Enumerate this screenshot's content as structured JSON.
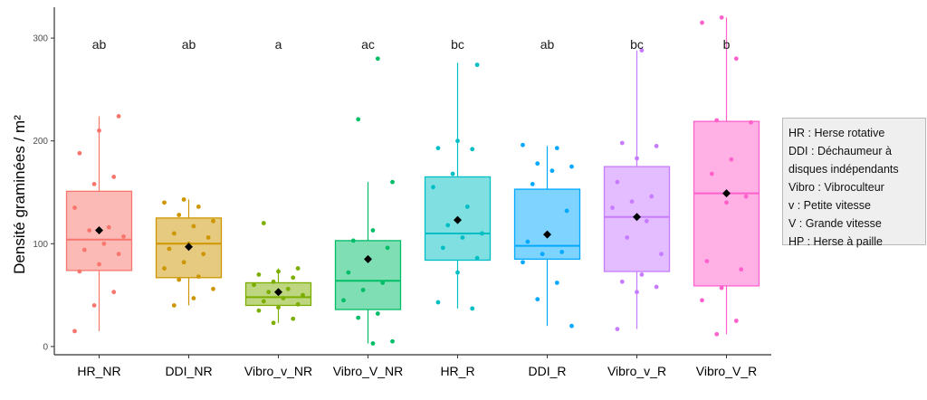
{
  "chart_data": {
    "type": "boxplot",
    "ylabel": "Densité graminées / m²",
    "xlabel": "",
    "ylim": [
      -8,
      330
    ],
    "yticks": [
      0,
      100,
      200,
      300
    ],
    "grid": false,
    "categories": [
      "HR_NR",
      "DDI_NR",
      "Vibro_v_NR",
      "Vibro_V_NR",
      "HR_R",
      "DDI_R",
      "Vibro_v_R",
      "Vibro_V_R"
    ],
    "groups": [
      {
        "category": "HR_NR",
        "letter": "ab",
        "color": "#f8766d",
        "min": 15,
        "q1": 74,
        "median": 104,
        "q3": 151,
        "max": 224,
        "mean": 113,
        "points": [
          15,
          40,
          53,
          73,
          80,
          90,
          94,
          100,
          107,
          113,
          116,
          135,
          158,
          165,
          188,
          210,
          224
        ]
      },
      {
        "category": "DDI_NR",
        "letter": "ab",
        "color": "#cd9600",
        "min": 40,
        "q1": 67,
        "median": 100,
        "q3": 125,
        "max": 143,
        "mean": 97,
        "points": [
          40,
          47,
          56,
          65,
          68,
          76,
          82,
          90,
          95,
          100,
          106,
          110,
          117,
          122,
          128,
          136,
          140,
          143
        ]
      },
      {
        "category": "Vibro_v_NR",
        "letter": "a",
        "color": "#7cae00",
        "min": 23,
        "q1": 40,
        "median": 48,
        "q3": 62,
        "max": 76,
        "mean": 53,
        "points": [
          23,
          27,
          35,
          38,
          41,
          44,
          47,
          50,
          53,
          56,
          60,
          63,
          67,
          70,
          73,
          76,
          120
        ]
      },
      {
        "category": "Vibro_V_NR",
        "letter": "ac",
        "color": "#00be67",
        "min": 3,
        "q1": 36,
        "median": 64,
        "q3": 103,
        "max": 160,
        "mean": 85,
        "points": [
          3,
          5,
          28,
          32,
          45,
          55,
          62,
          72,
          86,
          96,
          103,
          113,
          160,
          221,
          280
        ]
      },
      {
        "category": "HR_R",
        "letter": "bc",
        "color": "#00bfc4",
        "min": 37,
        "q1": 84,
        "median": 110,
        "q3": 165,
        "max": 276,
        "mean": 123,
        "points": [
          37,
          43,
          72,
          86,
          96,
          106,
          110,
          118,
          136,
          155,
          168,
          192,
          193,
          200,
          274
        ]
      },
      {
        "category": "DDI_R",
        "letter": "ab",
        "color": "#00a9ff",
        "min": 20,
        "q1": 85,
        "median": 98,
        "q3": 153,
        "max": 195,
        "mean": 109,
        "points": [
          20,
          46,
          62,
          82,
          90,
          92,
          102,
          110,
          132,
          158,
          171,
          175,
          178,
          193,
          196
        ]
      },
      {
        "category": "Vibro_v_R",
        "letter": "bc",
        "color": "#c77cff",
        "min": 17,
        "q1": 73,
        "median": 126,
        "q3": 175,
        "max": 288,
        "mean": 126,
        "points": [
          17,
          53,
          58,
          63,
          70,
          90,
          106,
          122,
          135,
          141,
          146,
          160,
          183,
          195,
          198,
          288
        ]
      },
      {
        "category": "Vibro_V_R",
        "letter": "b",
        "color": "#ff61cc",
        "min": 12,
        "q1": 59,
        "median": 149,
        "q3": 219,
        "max": 320,
        "mean": 149,
        "points": [
          12,
          25,
          45,
          57,
          75,
          83,
          140,
          146,
          168,
          182,
          218,
          220,
          280,
          315,
          320
        ]
      }
    ]
  },
  "legend": {
    "lines": [
      "HR : Herse rotative",
      "DDI : Déchaumeur à",
      "disques indépendants",
      "Vibro : Vibroculteur",
      "v : Petite vitesse",
      "V : Grande vitesse",
      "HP : Herse à paille"
    ]
  }
}
